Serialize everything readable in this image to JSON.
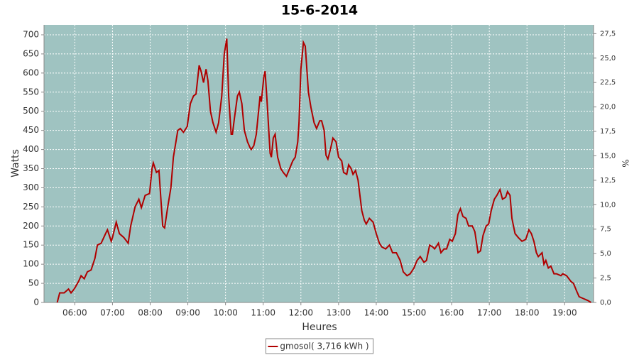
{
  "chart_data": {
    "type": "line",
    "title": "15-6-2014",
    "x_label": "Heures",
    "y_label": "Watts",
    "y2_label": "%",
    "xlim": [
      311,
      1186
    ],
    "ylim": [
      0,
      726
    ],
    "y2lim": [
      0,
      28.4
    ],
    "grid": true,
    "legend": "bottom",
    "background": "#9fc3c1",
    "xticks": [
      {
        "value": 360,
        "label": "06:00"
      },
      {
        "value": 420,
        "label": "07:00"
      },
      {
        "value": 480,
        "label": "08:00"
      },
      {
        "value": 540,
        "label": "09:00"
      },
      {
        "value": 600,
        "label": "10:00"
      },
      {
        "value": 660,
        "label": "11:00"
      },
      {
        "value": 720,
        "label": "12:00"
      },
      {
        "value": 780,
        "label": "13:00"
      },
      {
        "value": 840,
        "label": "14:00"
      },
      {
        "value": 900,
        "label": "15:00"
      },
      {
        "value": 960,
        "label": "16:00"
      },
      {
        "value": 1020,
        "label": "17:00"
      },
      {
        "value": 1080,
        "label": "18:00"
      },
      {
        "value": 1140,
        "label": "19:00"
      }
    ],
    "yticks": [
      0,
      50,
      100,
      150,
      200,
      250,
      300,
      350,
      400,
      450,
      500,
      550,
      600,
      650,
      700
    ],
    "y2ticks": [
      {
        "value": 0,
        "label": "0,0"
      },
      {
        "value": 2.5,
        "label": "2,5"
      },
      {
        "value": 5,
        "label": "5,0"
      },
      {
        "value": 7.5,
        "label": "7,5"
      },
      {
        "value": 10,
        "label": "10,0"
      },
      {
        "value": 12.5,
        "label": "12,5"
      },
      {
        "value": 15,
        "label": "15,0"
      },
      {
        "value": 17.5,
        "label": "17,5"
      },
      {
        "value": 20,
        "label": "20,0"
      },
      {
        "value": 22.5,
        "label": "22,5"
      },
      {
        "value": 25,
        "label": "25,0"
      },
      {
        "value": 27.5,
        "label": "27,5"
      }
    ],
    "x": [
      332,
      336,
      343,
      350,
      354,
      359,
      366,
      370,
      375,
      380,
      386,
      392,
      396,
      402,
      409,
      412,
      418,
      420,
      426,
      431,
      438,
      445,
      449,
      456,
      462,
      466,
      472,
      479,
      483,
      485,
      490,
      494,
      500,
      503,
      508,
      513,
      517,
      524,
      528,
      533,
      539,
      544,
      549,
      553,
      558,
      561,
      565,
      569,
      572,
      576,
      580,
      585,
      589,
      594,
      598,
      602,
      605,
      609,
      611,
      614,
      619,
      622,
      626,
      630,
      635,
      639,
      641,
      645,
      649,
      655,
      657,
      661,
      663,
      666,
      671,
      673,
      676,
      679,
      683,
      688,
      692,
      697,
      702,
      707,
      711,
      715,
      717,
      720,
      724,
      727,
      732,
      736,
      741,
      745,
      750,
      753,
      757,
      760,
      763,
      767,
      771,
      776,
      780,
      785,
      788,
      793,
      796,
      800,
      803,
      807,
      811,
      817,
      821,
      824,
      829,
      835,
      840,
      845,
      849,
      855,
      861,
      866,
      872,
      878,
      883,
      889,
      894,
      900,
      905,
      910,
      916,
      920,
      925,
      930,
      933,
      939,
      943,
      948,
      952,
      957,
      961,
      966,
      970,
      974,
      978,
      983,
      987,
      993,
      997,
      1002,
      1006,
      1010,
      1015,
      1019,
      1023,
      1028,
      1032,
      1037,
      1041,
      1046,
      1049,
      1053,
      1056,
      1061,
      1066,
      1072,
      1078,
      1083,
      1087,
      1091,
      1095,
      1098,
      1101,
      1104,
      1107,
      1110,
      1114,
      1118,
      1123,
      1127,
      1134,
      1137,
      1143,
      1150,
      1154,
      1159,
      1163,
      1170,
      1177,
      1182
    ],
    "series": [
      {
        "name": "gmosol( 3,716 kWh )",
        "color": "#b00000",
        "values": [
          0,
          25,
          25,
          35,
          25,
          35,
          55,
          70,
          62,
          80,
          85,
          115,
          150,
          155,
          180,
          190,
          160,
          170,
          210,
          180,
          170,
          155,
          200,
          250,
          270,
          248,
          280,
          285,
          350,
          365,
          340,
          345,
          200,
          195,
          250,
          300,
          380,
          450,
          455,
          445,
          460,
          520,
          540,
          545,
          620,
          605,
          575,
          610,
          580,
          500,
          470,
          445,
          470,
          540,
          650,
          690,
          540,
          440,
          440,
          480,
          540,
          550,
          520,
          450,
          420,
          405,
          400,
          410,
          440,
          540,
          525,
          590,
          605,
          530,
          390,
          380,
          430,
          440,
          380,
          350,
          340,
          330,
          350,
          370,
          380,
          420,
          470,
          610,
          680,
          670,
          550,
          510,
          470,
          455,
          475,
          475,
          450,
          385,
          375,
          400,
          430,
          420,
          380,
          370,
          340,
          335,
          360,
          350,
          335,
          345,
          320,
          240,
          215,
          205,
          220,
          210,
          180,
          155,
          145,
          140,
          150,
          130,
          130,
          110,
          80,
          70,
          75,
          90,
          110,
          120,
          105,
          110,
          150,
          145,
          140,
          155,
          130,
          140,
          140,
          165,
          160,
          180,
          230,
          245,
          225,
          220,
          200,
          200,
          185,
          130,
          135,
          175,
          200,
          205,
          240,
          270,
          280,
          295,
          270,
          275,
          290,
          280,
          220,
          180,
          170,
          160,
          165,
          190,
          180,
          160,
          130,
          120,
          125,
          130,
          100,
          110,
          90,
          95,
          75,
          75,
          70,
          75,
          70,
          55,
          50,
          30,
          15,
          10,
          5,
          0
        ]
      }
    ]
  }
}
